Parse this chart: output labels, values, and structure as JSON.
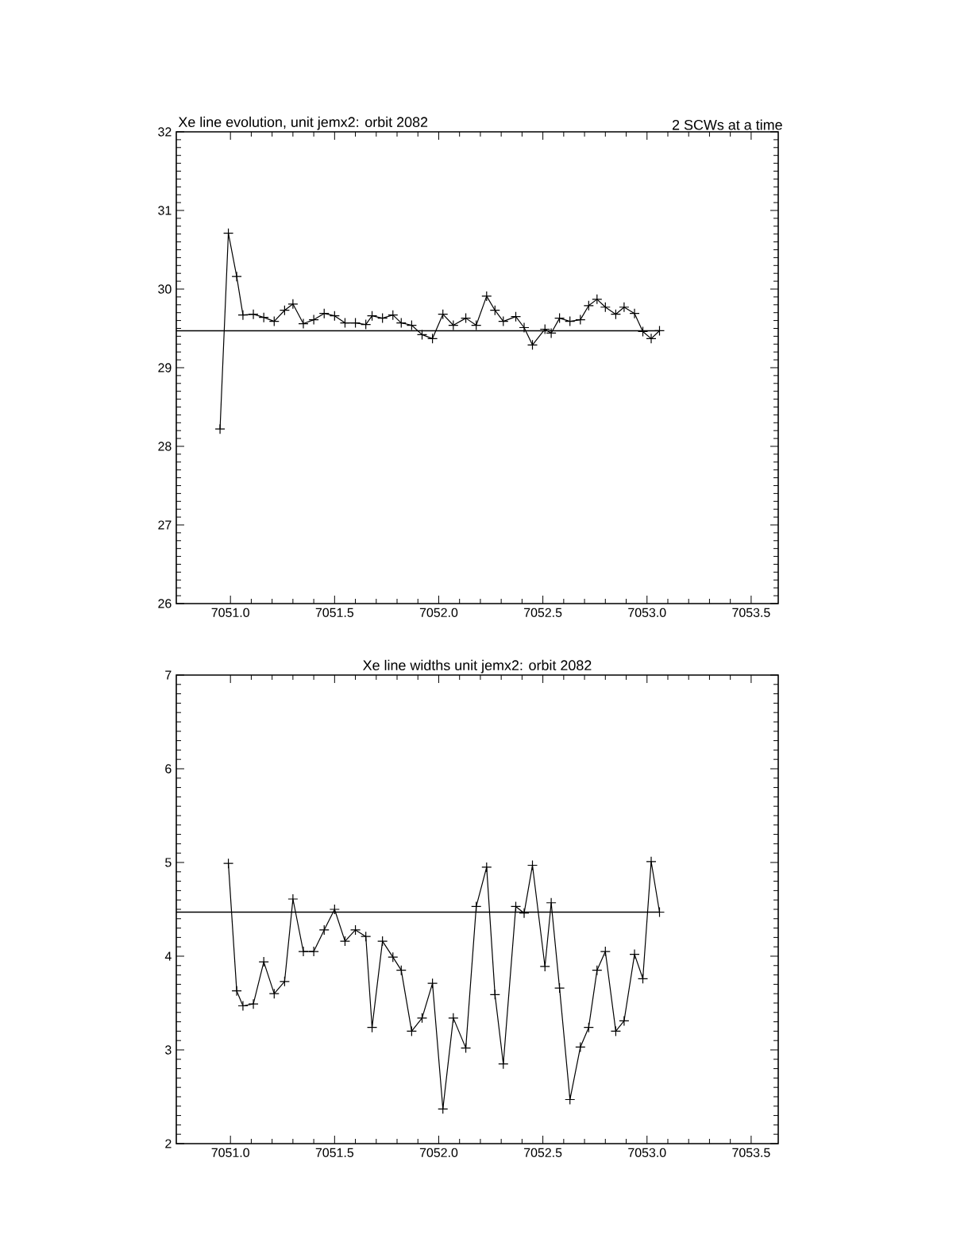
{
  "chart_data": [
    {
      "type": "line",
      "title": "Xe line evolution, unit jemx2: orbit 2082",
      "subtitle": "2 SCWs at a time",
      "marker": "cross",
      "line_style": "solid",
      "x": [
        7050.95,
        7050.99,
        7051.03,
        7051.06,
        7051.11,
        7051.16,
        7051.21,
        7051.26,
        7051.3,
        7051.35,
        7051.4,
        7051.45,
        7051.5,
        7051.55,
        7051.6,
        7051.65,
        7051.68,
        7051.73,
        7051.78,
        7051.82,
        7051.87,
        7051.92,
        7051.97,
        7052.02,
        7052.07,
        7052.13,
        7052.18,
        7052.23,
        7052.27,
        7052.31,
        7052.37,
        7052.41,
        7052.45,
        7052.51,
        7052.54,
        7052.58,
        7052.63,
        7052.68,
        7052.72,
        7052.76,
        7052.8,
        7052.85,
        7052.89,
        7052.94,
        7052.98,
        7053.02,
        7053.06
      ],
      "series": [
        {
          "color": "#000000",
          "values": [
            28.22,
            30.71,
            30.16,
            29.67,
            29.68,
            29.64,
            29.59,
            29.73,
            29.81,
            29.56,
            29.61,
            29.69,
            29.66,
            29.57,
            29.57,
            29.55,
            29.66,
            29.63,
            29.67,
            29.57,
            29.54,
            29.42,
            29.37,
            29.68,
            29.54,
            29.63,
            29.54,
            29.91,
            29.73,
            29.59,
            29.65,
            29.51,
            29.29,
            29.49,
            29.44,
            29.63,
            29.59,
            29.61,
            29.79,
            29.87,
            29.77,
            29.68,
            29.77,
            29.69,
            29.46,
            29.37,
            29.47
          ]
        }
      ],
      "ref_lines": [
        {
          "axis": "y",
          "value": 29.47,
          "color": "#000000"
        }
      ],
      "xlim": [
        7050.74,
        7053.63
      ],
      "ylim": [
        26,
        32
      ],
      "xticks": [
        {
          "value": 7051,
          "label": "7051.0"
        },
        {
          "value": 7051.5,
          "label": "7051.5"
        },
        {
          "value": 7052,
          "label": "7052.0"
        },
        {
          "value": 7052.5,
          "label": "7052.5"
        },
        {
          "value": 7053,
          "label": "7053.0"
        },
        {
          "value": 7053.5,
          "label": "7053.5"
        }
      ],
      "yticks": [
        26,
        27,
        28,
        29,
        30,
        31,
        32
      ]
    },
    {
      "type": "line",
      "title": "Xe line widths unit jemx2: orbit 2082",
      "marker": "cross",
      "line_style": "solid",
      "x": [
        7050.99,
        7051.03,
        7051.06,
        7051.11,
        7051.16,
        7051.21,
        7051.26,
        7051.3,
        7051.35,
        7051.4,
        7051.45,
        7051.5,
        7051.55,
        7051.6,
        7051.65,
        7051.68,
        7051.73,
        7051.78,
        7051.82,
        7051.87,
        7051.92,
        7051.97,
        7052.02,
        7052.07,
        7052.13,
        7052.18,
        7052.23,
        7052.27,
        7052.31,
        7052.37,
        7052.41,
        7052.45,
        7052.51,
        7052.54,
        7052.58,
        7052.63,
        7052.68,
        7052.72,
        7052.76,
        7052.8,
        7052.85,
        7052.89,
        7052.94,
        7052.98,
        7053.02,
        7053.06
      ],
      "series": [
        {
          "color": "#000000",
          "values": [
            4.99,
            3.63,
            3.47,
            3.49,
            3.94,
            3.6,
            3.73,
            4.61,
            4.05,
            4.05,
            4.28,
            4.5,
            4.16,
            4.28,
            4.21,
            3.24,
            4.16,
            3.99,
            3.85,
            3.2,
            3.34,
            3.71,
            2.37,
            3.34,
            3.02,
            4.53,
            4.95,
            3.59,
            2.85,
            4.53,
            4.46,
            4.97,
            3.89,
            4.57,
            3.66,
            2.47,
            3.03,
            3.24,
            3.85,
            4.05,
            3.2,
            3.31,
            4.02,
            3.76,
            5.01,
            4.47
          ]
        }
      ],
      "ref_lines": [
        {
          "axis": "y",
          "value": 4.47,
          "color": "#000000"
        }
      ],
      "xlim": [
        7050.74,
        7053.63
      ],
      "ylim": [
        2,
        7
      ],
      "xticks": [
        {
          "value": 7051,
          "label": "7051.0"
        },
        {
          "value": 7051.5,
          "label": "7051.5"
        },
        {
          "value": 7052,
          "label": "7052.0"
        },
        {
          "value": 7052.5,
          "label": "7052.5"
        },
        {
          "value": 7053,
          "label": "7053.0"
        },
        {
          "value": 7053.5,
          "label": "7053.5"
        }
      ],
      "yticks": [
        2,
        3,
        4,
        5,
        6,
        7
      ]
    }
  ]
}
